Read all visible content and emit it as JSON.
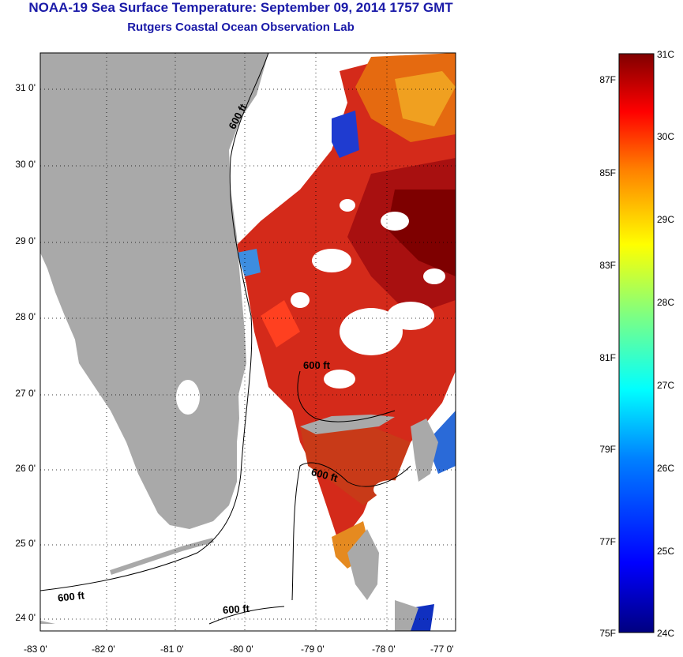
{
  "title": "NOAA-19 Sea Surface Temperature:  September 09, 2014 1757 GMT",
  "subtitle": "Rutgers Coastal Ocean Observation Lab",
  "map": {
    "lon_labels": [
      "-83 0'",
      "-82 0'",
      "-81 0'",
      "-80 0'",
      "-79 0'",
      "-78 0'",
      "-77 0'"
    ],
    "lat_labels": [
      "31 0'",
      "30 0'",
      "29 0'",
      "28 0'",
      "27 0'",
      "26 0'",
      "25 0'",
      "24 0'"
    ],
    "contour_labels": [
      "600 ft",
      "600 ft",
      "600 ft",
      "600 ft",
      "600 ft"
    ],
    "land_color": "#a9a9a9",
    "grid": "dotted"
  },
  "colorbar": {
    "celsius_labels": [
      "31C",
      "30C",
      "29C",
      "28C",
      "27C",
      "26C",
      "25C",
      "24C"
    ],
    "fahrenheit_labels": [
      "87F",
      "85F",
      "83F",
      "81F",
      "79F",
      "77F",
      "75F"
    ],
    "colors": [
      "#000080",
      "#0000ff",
      "#0080ff",
      "#00ffff",
      "#80ff80",
      "#ffff00",
      "#ff8000",
      "#ff0000",
      "#800000"
    ]
  }
}
